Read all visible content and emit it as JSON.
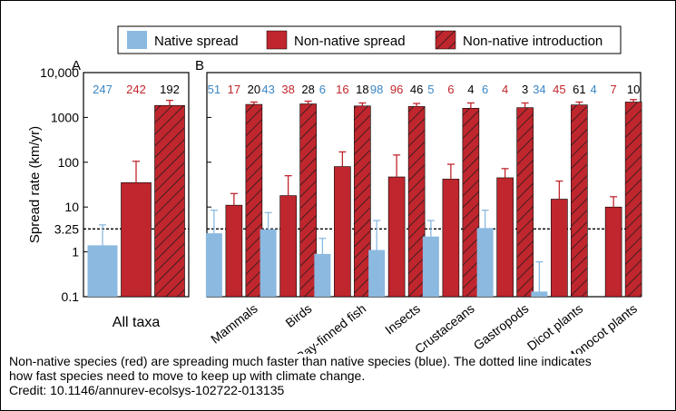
{
  "chart_data": {
    "type": "bar",
    "scale": "log",
    "ylabel": "Spread rate (km/yr)",
    "ylim": [
      0.1,
      10000
    ],
    "yticks": [
      {
        "value": 0.1,
        "label": "0.1"
      },
      {
        "value": 1,
        "label": "1"
      },
      {
        "value": 3.25,
        "label": "3.25"
      },
      {
        "value": 10,
        "label": "10"
      },
      {
        "value": 100,
        "label": "100"
      },
      {
        "value": 1000,
        "label": "1000"
      },
      {
        "value": 10000,
        "label": "10,000"
      }
    ],
    "reference_line": {
      "value": 3.25,
      "style": "dotted"
    },
    "legend": [
      {
        "name": "Native spread",
        "color": "#8bb9e0",
        "pattern": "solid"
      },
      {
        "name": "Non-native spread",
        "color": "#c0262d",
        "pattern": "solid"
      },
      {
        "name": "Non-native introduction",
        "color": "#c0262d",
        "pattern": "hatched"
      }
    ],
    "series_colors": {
      "native": "#8bb9e0",
      "nonnative": "#c0262d",
      "intro": "#c0262d"
    },
    "count_colors": {
      "native": "#3a86c4",
      "nonnative": "#c0262d",
      "intro": "#000000"
    },
    "panels": [
      {
        "label": "A",
        "categories": [
          {
            "name": "All taxa",
            "native": {
              "value": 1.4,
              "err": 4.0,
              "n": "247"
            },
            "nonnative": {
              "value": 35,
              "err": 105,
              "n": "242"
            },
            "intro": {
              "value": 1850,
              "err": 2400,
              "n": "192"
            }
          }
        ]
      },
      {
        "label": "B",
        "categories": [
          {
            "name": "Mammals",
            "native": {
              "value": 2.6,
              "err": 8.5,
              "n": "51"
            },
            "nonnative": {
              "value": 11,
              "err": 20,
              "n": "17"
            },
            "intro": {
              "value": 1950,
              "err": 2200,
              "n": "20"
            }
          },
          {
            "name": "Birds",
            "native": {
              "value": 3.2,
              "err": 7.5,
              "n": "43"
            },
            "nonnative": {
              "value": 18,
              "err": 50,
              "n": "38"
            },
            "intro": {
              "value": 2000,
              "err": 2300,
              "n": "28"
            }
          },
          {
            "name": "Ray-finned fish",
            "native": {
              "value": 0.9,
              "err": 2.0,
              "n": "6"
            },
            "nonnative": {
              "value": 80,
              "err": 170,
              "n": "16"
            },
            "intro": {
              "value": 1800,
              "err": 2100,
              "n": "18"
            }
          },
          {
            "name": "Insects",
            "native": {
              "value": 1.1,
              "err": 5.0,
              "n": "98"
            },
            "nonnative": {
              "value": 47,
              "err": 145,
              "n": "96"
            },
            "intro": {
              "value": 1750,
              "err": 2050,
              "n": "46"
            }
          },
          {
            "name": "Crustaceans",
            "native": {
              "value": 2.2,
              "err": 5.0,
              "n": "5"
            },
            "nonnative": {
              "value": 42,
              "err": 90,
              "n": "6"
            },
            "intro": {
              "value": 1600,
              "err": 2100,
              "n": "4"
            }
          },
          {
            "name": "Gastropods",
            "native": {
              "value": 3.4,
              "err": 8.5,
              "n": "6"
            },
            "nonnative": {
              "value": 45,
              "err": 72,
              "n": "4"
            },
            "intro": {
              "value": 1650,
              "err": 2100,
              "n": "3"
            }
          },
          {
            "name": "Dicot plants",
            "native": {
              "value": 0.13,
              "err": 0.6,
              "n": "34"
            },
            "nonnative": {
              "value": 15,
              "err": 38,
              "n": "45"
            },
            "intro": {
              "value": 1900,
              "err": 2200,
              "n": "61"
            }
          },
          {
            "name": "Monocot plants",
            "native": {
              "value": null,
              "err": null,
              "n": "4"
            },
            "nonnative": {
              "value": 10,
              "err": 17,
              "n": "7"
            },
            "intro": {
              "value": 2200,
              "err": 2500,
              "n": "10"
            }
          }
        ]
      }
    ]
  },
  "caption": {
    "line1": "Non-native species (red) are spreading much faster than native species (blue). The dotted line indicates",
    "line2": "how fast species need to move to keep up with climate change.",
    "credit": "Credit: 10.1146/annurev-ecolsys-102722-013135"
  }
}
